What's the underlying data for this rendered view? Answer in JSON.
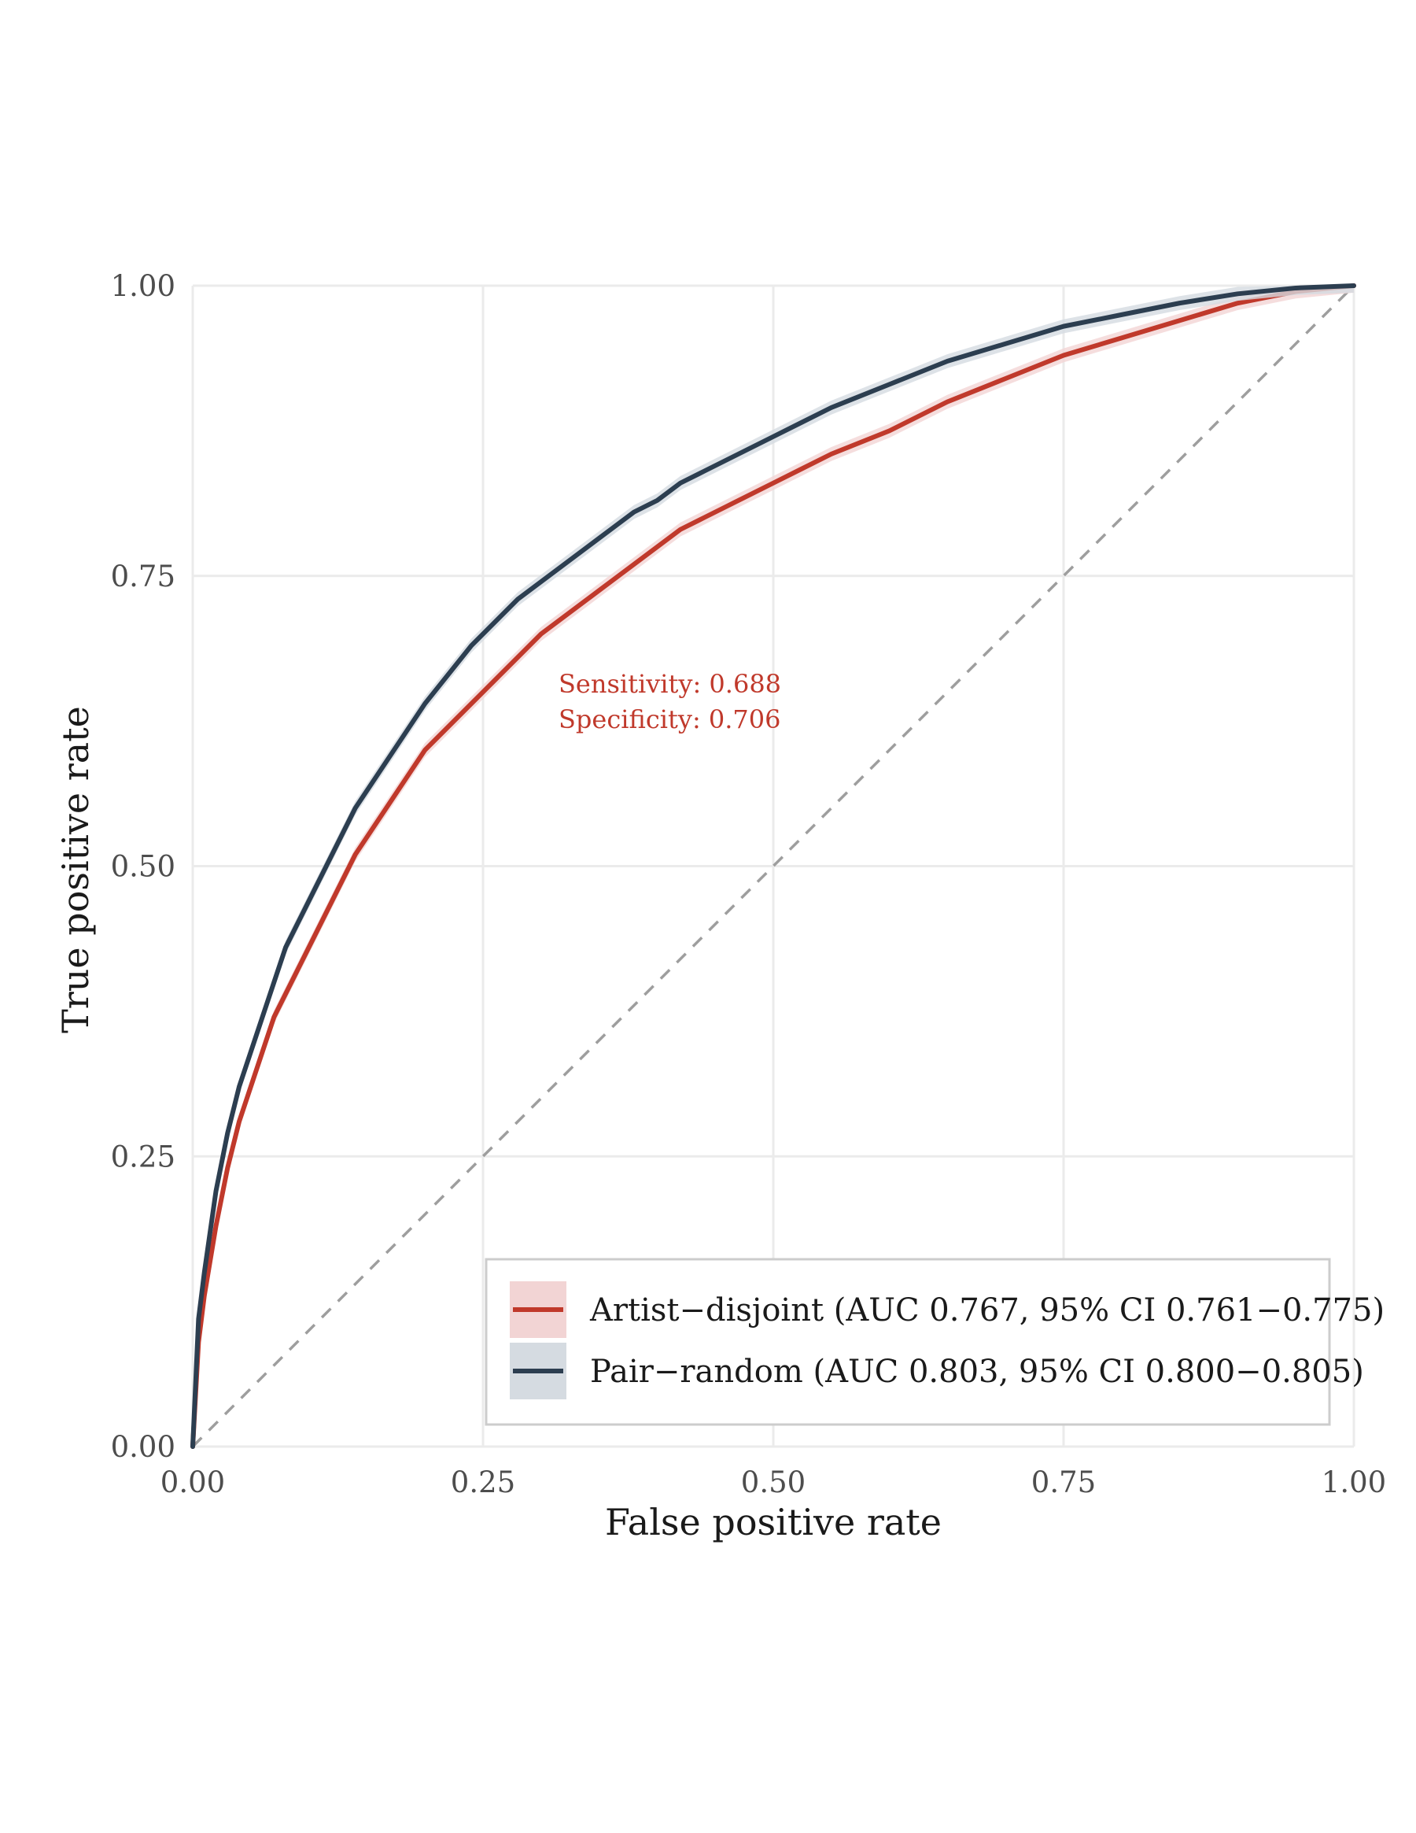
{
  "chart_data": {
    "type": "line",
    "xlabel": "False positive rate",
    "ylabel": "True positive rate",
    "xlim": [
      0,
      1
    ],
    "ylim": [
      0,
      1
    ],
    "x_ticks": [
      "0.00",
      "0.25",
      "0.50",
      "0.75",
      "1.00"
    ],
    "y_ticks": [
      "0.00",
      "0.25",
      "0.50",
      "0.75",
      "1.00"
    ],
    "grid": true,
    "legend_position": "bottom-right",
    "series": [
      {
        "name": "Artist−disjoint (AUC 0.767, 95% CI 0.761−0.775)",
        "color": "#c0392b",
        "ci_band_color": "#f2d4d4",
        "x": [
          0.0,
          0.005,
          0.01,
          0.02,
          0.03,
          0.04,
          0.05,
          0.06,
          0.07,
          0.08,
          0.09,
          0.1,
          0.12,
          0.14,
          0.16,
          0.18,
          0.2,
          0.22,
          0.24,
          0.26,
          0.28,
          0.3,
          0.32,
          0.34,
          0.36,
          0.38,
          0.4,
          0.42,
          0.44,
          0.46,
          0.5,
          0.55,
          0.6,
          0.65,
          0.7,
          0.75,
          0.8,
          0.85,
          0.9,
          0.95,
          1.0
        ],
        "y": [
          0.0,
          0.09,
          0.13,
          0.19,
          0.24,
          0.28,
          0.31,
          0.34,
          0.37,
          0.39,
          0.41,
          0.43,
          0.47,
          0.51,
          0.54,
          0.57,
          0.6,
          0.62,
          0.64,
          0.66,
          0.68,
          0.7,
          0.715,
          0.73,
          0.745,
          0.76,
          0.775,
          0.79,
          0.8,
          0.81,
          0.83,
          0.855,
          0.875,
          0.9,
          0.92,
          0.94,
          0.955,
          0.97,
          0.985,
          0.995,
          1.0
        ]
      },
      {
        "name": "Pair−random (AUC 0.803, 95% CI 0.800−0.805)",
        "color": "#2c3e50",
        "ci_band_color": "#d5dbe1",
        "x": [
          0.0,
          0.005,
          0.01,
          0.02,
          0.03,
          0.04,
          0.05,
          0.06,
          0.07,
          0.08,
          0.09,
          0.1,
          0.12,
          0.14,
          0.16,
          0.18,
          0.2,
          0.22,
          0.24,
          0.26,
          0.28,
          0.3,
          0.32,
          0.34,
          0.36,
          0.38,
          0.4,
          0.42,
          0.44,
          0.46,
          0.5,
          0.55,
          0.6,
          0.65,
          0.7,
          0.75,
          0.8,
          0.85,
          0.9,
          0.95,
          1.0
        ],
        "y": [
          0.0,
          0.11,
          0.15,
          0.22,
          0.27,
          0.31,
          0.34,
          0.37,
          0.4,
          0.43,
          0.45,
          0.47,
          0.51,
          0.55,
          0.58,
          0.61,
          0.64,
          0.665,
          0.69,
          0.71,
          0.73,
          0.745,
          0.76,
          0.775,
          0.79,
          0.805,
          0.815,
          0.83,
          0.84,
          0.85,
          0.87,
          0.895,
          0.915,
          0.935,
          0.95,
          0.965,
          0.975,
          0.985,
          0.993,
          0.998,
          1.0
        ]
      }
    ],
    "reference_line": {
      "color": "#9e9e9e",
      "style": "dashed"
    },
    "annotations": [
      {
        "text": "Sensitivity: 0.688",
        "color": "#c0392b"
      },
      {
        "text": "Specificity: 0.706",
        "color": "#c0392b"
      }
    ]
  }
}
